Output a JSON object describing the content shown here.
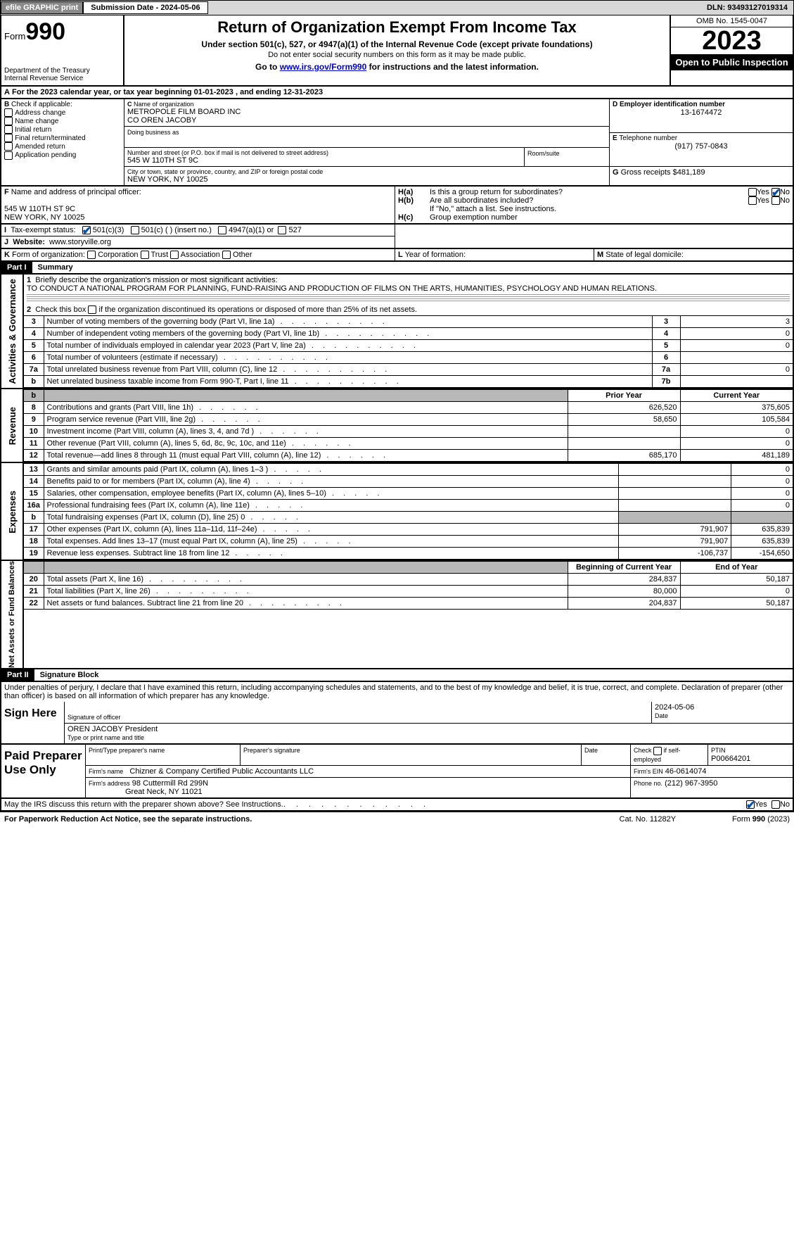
{
  "topbar": {
    "efile_label": "efile GRAPHIC print",
    "submission_label": "Submission Date - 2024-05-06",
    "dln_label": "DLN: 93493127019314"
  },
  "header": {
    "form_prefix": "Form",
    "form_number": "990",
    "dept1": "Department of the Treasury",
    "dept2": "Internal Revenue Service",
    "title": "Return of Organization Exempt From Income Tax",
    "sub1": "Under section 501(c), 527, or 4947(a)(1) of the Internal Revenue Code (except private foundations)",
    "sub2": "Do not enter social security numbers on this form as it may be made public.",
    "sub3_pre": "Go to ",
    "sub3_link": "www.irs.gov/Form990",
    "sub3_post": " for instructions and the latest information.",
    "omb": "OMB No. 1545-0047",
    "year": "2023",
    "inspect": "Open to Public Inspection"
  },
  "lineA": {
    "text_pre": "For the 2023 calendar year, or tax year beginning ",
    "begin": "01-01-2023",
    "text_mid": " , and ending ",
    "end": "12-31-2023"
  },
  "boxB": {
    "header": "Check if applicable:",
    "items": [
      "Address change",
      "Name change",
      "Initial return",
      "Final return/terminated",
      "Amended return",
      "Application pending"
    ],
    "letter": "B"
  },
  "boxC": {
    "letter": "C",
    "name_label": "Name of organization",
    "name1": "METROPOLE FILM BOARD INC",
    "name2": "CO OREN JACOBY",
    "dba_label": "Doing business as",
    "street_label": "Number and street (or P.O. box if mail is not delivered to street address)",
    "room_label": "Room/suite",
    "street": "545 W 110TH ST 9C",
    "city_label": "City or town, state or province, country, and ZIP or foreign postal code",
    "city": "NEW YORK, NY  10025"
  },
  "boxD": {
    "letter": "D",
    "label": "Employer identification number",
    "value": "13-1674472"
  },
  "boxE": {
    "letter": "E",
    "label": "Telephone number",
    "value": "(917) 757-0843"
  },
  "boxG": {
    "letter": "G",
    "label": "Gross receipts $",
    "value": "481,189"
  },
  "boxF": {
    "letter": "F",
    "label": "Name and address of principal officer:",
    "line1": "545 W 110TH ST 9C",
    "line2": "NEW YORK, NY  10025"
  },
  "boxH": {
    "a_label": "Is this a group return for subordinates?",
    "a_letter": "H(a)",
    "b_label": "Are all subordinates included?",
    "b_letter": "H(b)",
    "b_note": "If \"No,\" attach a list. See instructions.",
    "c_label": "Group exemption number",
    "c_letter": "H(c)",
    "yes": "Yes",
    "no": "No"
  },
  "boxI": {
    "letter": "I",
    "label": "Tax-exempt status:",
    "opt1": "501(c)(3)",
    "opt2": "501(c) (   ) (insert no.)",
    "opt3": "4947(a)(1) or",
    "opt4": "527"
  },
  "boxJ": {
    "letter": "J",
    "label": "Website:",
    "value": "www.storyville.org"
  },
  "boxK": {
    "letter": "K",
    "label": "Form of organization:",
    "opts": [
      "Corporation",
      "Trust",
      "Association",
      "Other"
    ]
  },
  "boxL": {
    "letter": "L",
    "label": "Year of formation:"
  },
  "boxM": {
    "letter": "M",
    "label": "State of legal domicile:"
  },
  "part1": {
    "part": "Part I",
    "title": "Summary"
  },
  "summary": {
    "side1": "Activities & Governance",
    "q1_label": "Briefly describe the organization's mission or most significant activities:",
    "q1_num": "1",
    "q1_text": "TO CONDUCT A NATIONAL PROGRAM FOR PLANNING, FUND-RAISING AND PRODUCTION OF FILMS ON THE ARTS, HUMANITIES, PSYCHOLOGY AND HUMAN RELATIONS.",
    "q2_num": "2",
    "q2_label": "Check this box        if the organization discontinued its operations or disposed of more than 25% of its net assets.",
    "rows_gov": [
      {
        "n": "3",
        "d": "Number of voting members of the governing body (Part VI, line 1a)",
        "box": "3",
        "v": "3"
      },
      {
        "n": "4",
        "d": "Number of independent voting members of the governing body (Part VI, line 1b)",
        "box": "4",
        "v": "0"
      },
      {
        "n": "5",
        "d": "Total number of individuals employed in calendar year 2023 (Part V, line 2a)",
        "box": "5",
        "v": "0"
      },
      {
        "n": "6",
        "d": "Total number of volunteers (estimate if necessary)",
        "box": "6",
        "v": ""
      },
      {
        "n": "7a",
        "d": "Total unrelated business revenue from Part VIII, column (C), line 12",
        "box": "7a",
        "v": "0"
      },
      {
        "n": "b",
        "d": "Net unrelated business taxable income from Form 990-T, Part I, line 11",
        "box": "7b",
        "v": ""
      }
    ],
    "side2": "Revenue",
    "hdr_prior": "Prior Year",
    "hdr_curr": "Current Year",
    "rows_rev": [
      {
        "n": "8",
        "d": "Contributions and grants (Part VIII, line 1h)",
        "p": "626,520",
        "c": "375,605"
      },
      {
        "n": "9",
        "d": "Program service revenue (Part VIII, line 2g)",
        "p": "58,650",
        "c": "105,584"
      },
      {
        "n": "10",
        "d": "Investment income (Part VIII, column (A), lines 3, 4, and 7d )",
        "p": "",
        "c": "0"
      },
      {
        "n": "11",
        "d": "Other revenue (Part VIII, column (A), lines 5, 6d, 8c, 9c, 10c, and 11e)",
        "p": "",
        "c": "0"
      },
      {
        "n": "12",
        "d": "Total revenue—add lines 8 through 11 (must equal Part VIII, column (A), line 12)",
        "p": "685,170",
        "c": "481,189"
      }
    ],
    "side3": "Expenses",
    "rows_exp": [
      {
        "n": "13",
        "d": "Grants and similar amounts paid (Part IX, column (A), lines 1–3 )",
        "p": "",
        "c": "0"
      },
      {
        "n": "14",
        "d": "Benefits paid to or for members (Part IX, column (A), line 4)",
        "p": "",
        "c": "0"
      },
      {
        "n": "15",
        "d": "Salaries, other compensation, employee benefits (Part IX, column (A), lines 5–10)",
        "p": "",
        "c": "0"
      },
      {
        "n": "16a",
        "d": "Professional fundraising fees (Part IX, column (A), line 11e)",
        "p": "",
        "c": "0"
      },
      {
        "n": "b",
        "d": "Total fundraising expenses (Part IX, column (D), line 25) 0",
        "p": "GREY",
        "c": "GREY"
      },
      {
        "n": "17",
        "d": "Other expenses (Part IX, column (A), lines 11a–11d, 11f–24e)",
        "p": "791,907",
        "c": "635,839"
      },
      {
        "n": "18",
        "d": "Total expenses. Add lines 13–17 (must equal Part IX, column (A), line 25)",
        "p": "791,907",
        "c": "635,839"
      },
      {
        "n": "19",
        "d": "Revenue less expenses. Subtract line 18 from line 12",
        "p": "-106,737",
        "c": "-154,650"
      }
    ],
    "side4": "Net Assets or Fund Balances",
    "hdr_begin": "Beginning of Current Year",
    "hdr_end": "End of Year",
    "rows_net": [
      {
        "n": "20",
        "d": "Total assets (Part X, line 16)",
        "p": "284,837",
        "c": "50,187"
      },
      {
        "n": "21",
        "d": "Total liabilities (Part X, line 26)",
        "p": "80,000",
        "c": "0"
      },
      {
        "n": "22",
        "d": "Net assets or fund balances. Subtract line 21 from line 20",
        "p": "204,837",
        "c": "50,187"
      }
    ]
  },
  "part2": {
    "part": "Part II",
    "title": "Signature Block"
  },
  "penalties": "Under penalties of perjury, I declare that I have examined this return, including accompanying schedules and statements, and to the best of my knowledge and belief, it is true, correct, and complete. Declaration of preparer (other than officer) is based on all information of which preparer has any knowledge.",
  "sign": {
    "side": "Sign Here",
    "sig_label": "Signature of officer",
    "date_label": "Date",
    "date_value": "2024-05-06",
    "name": "OREN JACOBY President",
    "name_label": "Type or print name and title"
  },
  "paid": {
    "side": "Paid Preparer Use Only",
    "c1": "Print/Type preparer's name",
    "c2": "Preparer's signature",
    "c3": "Date",
    "c4_pre": "Check",
    "c4_post": "if self-employed",
    "c5_label": "PTIN",
    "c5_value": "P00664201",
    "firm_label": "Firm's name",
    "firm_name": "Chizner & Company Certified Public Accountants LLC",
    "ein_label": "Firm's EIN",
    "ein_value": "46-0614074",
    "addr_label": "Firm's address",
    "addr1": "98 Cuttermill Rd 299N",
    "addr2": "Great Neck, NY  11021",
    "phone_label": "Phone no.",
    "phone_value": "(212) 967-3950"
  },
  "discuss": {
    "text": "May the IRS discuss this return with the preparer shown above? See Instructions.",
    "yes": "Yes",
    "no": "No"
  },
  "footer": {
    "left": "For Paperwork Reduction Act Notice, see the separate instructions.",
    "mid": "Cat. No. 11282Y",
    "right": "Form 990 (2023)"
  },
  "colors": {
    "accent": "#0050b3",
    "grey": "#b8b8b8"
  }
}
